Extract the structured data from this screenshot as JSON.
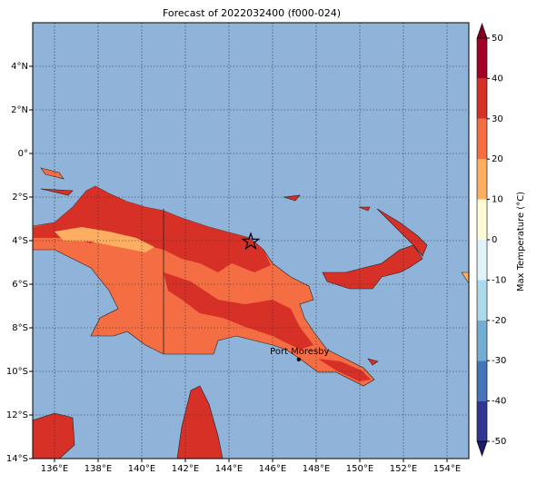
{
  "map": {
    "title": "Forecast of 2022032400 (f000-024)",
    "xlim": [
      135,
      155
    ],
    "ylim": [
      -14,
      6
    ],
    "xticks": [
      {
        "value": 136,
        "label": "136°E"
      },
      {
        "value": 138,
        "label": "138°E"
      },
      {
        "value": 140,
        "label": "140°E"
      },
      {
        "value": 142,
        "label": "142°E"
      },
      {
        "value": 144,
        "label": "144°E"
      },
      {
        "value": 146,
        "label": "146°E"
      },
      {
        "value": 148,
        "label": "148°E"
      },
      {
        "value": 150,
        "label": "150°E"
      },
      {
        "value": 152,
        "label": "152°E"
      },
      {
        "value": 154,
        "label": "154°E"
      }
    ],
    "yticks": [
      {
        "value": -14,
        "label": "14°S"
      },
      {
        "value": -12,
        "label": "12°S"
      },
      {
        "value": -10,
        "label": "10°S"
      },
      {
        "value": -8,
        "label": "8°S"
      },
      {
        "value": -6,
        "label": "6°S"
      },
      {
        "value": -4,
        "label": "4°S"
      },
      {
        "value": -2,
        "label": "2°S"
      },
      {
        "value": 0,
        "label": "0°"
      },
      {
        "value": 2,
        "label": "2°N"
      },
      {
        "value": 4,
        "label": "4°N"
      }
    ],
    "grid": true,
    "ocean_color": "#8fb3d9",
    "marker": {
      "lon": 145,
      "lat": -4.05
    },
    "annotation": {
      "text": "Port Moresby",
      "lon": 147.2,
      "lat": -9.45
    },
    "colorbar": {
      "label": "Max Temperature (°C)",
      "lim": [
        -50,
        50
      ],
      "ticks": [
        -50,
        -40,
        -30,
        -20,
        -10,
        0,
        10,
        20,
        30,
        40,
        50
      ],
      "colors": [
        "#313695",
        "#4575b4",
        "#74add1",
        "#abd9e9",
        "#e0f3f8",
        "#fffcd5",
        "#fdae61",
        "#f46d43",
        "#d73027",
        "#a50026"
      ],
      "under_color": "#1c1c6e",
      "over_color": "#800020"
    }
  }
}
